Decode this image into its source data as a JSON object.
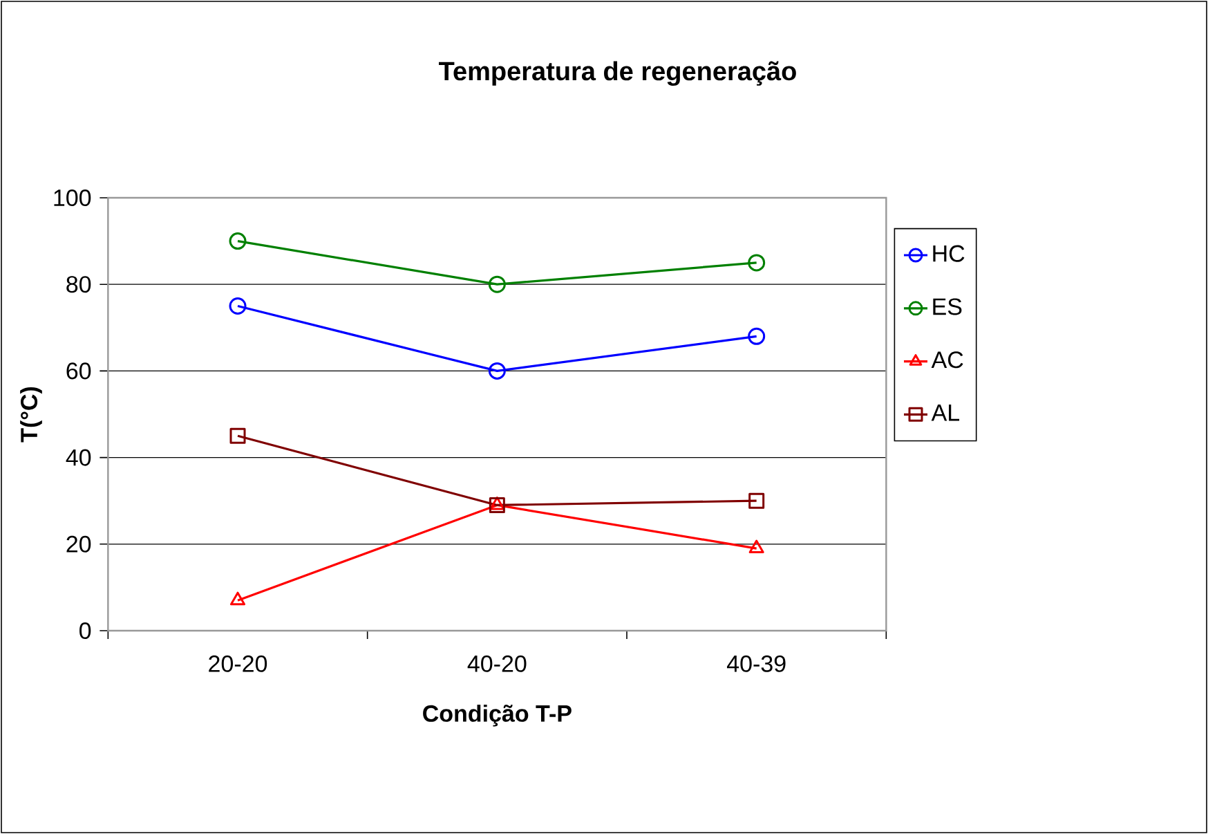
{
  "chart_data": {
    "type": "line",
    "title": "Temperatura de regeneração",
    "xlabel": "Condição T-P",
    "ylabel": "T(°C)",
    "categories": [
      "20-20",
      "40-20",
      "40-39"
    ],
    "series": [
      {
        "name": "HC",
        "color": "#0000ff",
        "marker": "circle",
        "values": [
          75,
          60,
          68
        ]
      },
      {
        "name": "ES",
        "color": "#008000",
        "marker": "circle",
        "values": [
          90,
          80,
          85
        ]
      },
      {
        "name": "AC",
        "color": "#ff0000",
        "marker": "triangle",
        "values": [
          7,
          29,
          19
        ]
      },
      {
        "name": "AL",
        "color": "#800000",
        "marker": "square",
        "values": [
          45,
          29,
          30
        ]
      }
    ],
    "ylim": [
      0,
      100
    ],
    "yticks": [
      0,
      20,
      40,
      60,
      80,
      100
    ],
    "grid": "y",
    "legend": "right",
    "line_style": "solid"
  }
}
